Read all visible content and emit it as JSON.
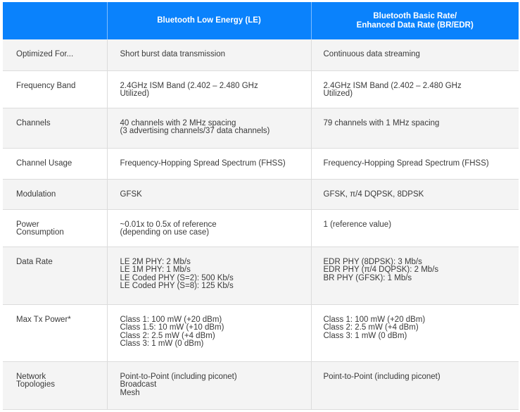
{
  "table": {
    "headers": [
      [],
      [
        "Bluetooth Low Energy (LE)"
      ],
      [
        "Bluetooth Basic Rate/",
        "Enhanced Data Rate (BR/EDR)"
      ]
    ],
    "rows": [
      {
        "label": [
          "Optimized For..."
        ],
        "le": [
          "Short burst data transmission"
        ],
        "bredr": [
          "Continuous data streaming"
        ]
      },
      {
        "label": [
          "Frequency Band"
        ],
        "le": [
          "2.4GHz ISM Band (2.402 – 2.480 GHz",
          "Utilized)"
        ],
        "bredr": [
          "2.4GHz ISM Band (2.402 – 2.480 GHz",
          "Utilized)"
        ]
      },
      {
        "label": [
          "Channels"
        ],
        "le": [
          "40 channels with 2 MHz spacing",
          "(3 advertising channels/37 data channels)"
        ],
        "bredr": [
          "79 channels with 1 MHz spacing"
        ]
      },
      {
        "label": [
          "Channel Usage"
        ],
        "le": [
          "Frequency-Hopping Spread Spectrum (FHSS)"
        ],
        "bredr": [
          "Frequency-Hopping Spread Spectrum (FHSS)"
        ]
      },
      {
        "label": [
          "Modulation"
        ],
        "le": [
          "GFSK"
        ],
        "bredr": [
          "GFSK, π/4 DQPSK, 8DPSK"
        ]
      },
      {
        "label": [
          "Power",
          "Consumption"
        ],
        "le": [
          "~0.01x to 0.5x of reference",
          "(depending on use case)"
        ],
        "bredr": [
          "1 (reference value)"
        ]
      },
      {
        "label": [
          "Data Rate"
        ],
        "le": [
          "LE 2M PHY: 2 Mb/s",
          "LE 1M PHY: 1 Mb/s",
          "LE Coded PHY (S=2): 500 Kb/s",
          "LE Coded PHY (S=8): 125 Kb/s"
        ],
        "bredr": [
          "EDR PHY (8DPSK): 3 Mb/s",
          "EDR PHY (π/4 DQPSK): 2 Mb/s",
          "BR PHY (GFSK): 1 Mb/s"
        ]
      },
      {
        "label": [
          "Max Tx Power*"
        ],
        "le": [
          "Class 1: 100 mW (+20 dBm)",
          "Class 1.5: 10 mW (+10 dBm)",
          "Class 2: 2.5 mW (+4 dBm)",
          "Class 3: 1 mW (0 dBm)"
        ],
        "bredr": [
          "Class 1: 100 mW (+20 dBm)",
          "Class 2: 2.5 mW (+4 dBm)",
          "Class 3: 1 mW (0 dBm)"
        ]
      },
      {
        "label": [
          "Network",
          "Topologies"
        ],
        "le": [
          "Point-to-Point (including piconet)",
          "Broadcast",
          "Mesh"
        ],
        "bredr": [
          "Point-to-Point (including piconet)"
        ]
      }
    ]
  }
}
